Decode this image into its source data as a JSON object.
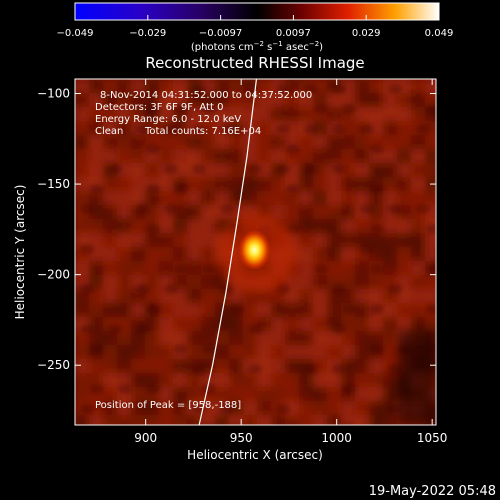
{
  "title": "Reconstructed RHESSI Image",
  "colorbar": {
    "ticks": [
      "−0.049",
      "−0.029",
      "−0.0097",
      "0.0097",
      "0.029",
      "0.049"
    ],
    "unit_prefix": "(photons cm",
    "unit_exp1": "−2",
    "unit_mid1": " s",
    "unit_exp2": "−1",
    "unit_mid2": " asec",
    "unit_exp3": "−2",
    "unit_suffix": ")",
    "colormap": "red-temperature"
  },
  "annotations": {
    "line1": "8-Nov-2014 04:31:52.000 to 04:37:52.000",
    "line2": "Detectors: 3F 6F 9F, Att 0",
    "line3": "Energy Range: 6.0 - 12.0 keV",
    "line4_a": "Clean",
    "line4_b": "Total counts: 7.16E+04",
    "peak": "Position of Peak = [958,-188]"
  },
  "footer_timestamp": "19-May-2022 05:48",
  "chart_data": {
    "type": "heatmap",
    "title": "Reconstructed RHESSI Image",
    "xlabel": "Heliocentric X (arcsec)",
    "ylabel": "Heliocentric Y (arcsec)",
    "xlim": [
      863,
      1052
    ],
    "ylim": [
      -283,
      -92
    ],
    "xticks": [
      {
        "value": 900,
        "label": "900"
      },
      {
        "value": 950,
        "label": "950"
      },
      {
        "value": 1000,
        "label": "1000"
      },
      {
        "value": 1050,
        "label": "1050"
      }
    ],
    "yticks": [
      {
        "value": -100,
        "label": "−100"
      },
      {
        "value": -150,
        "label": "−150"
      },
      {
        "value": -200,
        "label": "−200"
      },
      {
        "value": -250,
        "label": "−250"
      }
    ],
    "peak": {
      "x": 958,
      "y": -188
    },
    "colorbar_range": [
      -0.049,
      0.049
    ],
    "limb_curve": [
      [
        928,
        -283
      ],
      [
        935,
        -250
      ],
      [
        942,
        -210
      ],
      [
        948,
        -170
      ],
      [
        953,
        -135
      ],
      [
        958,
        -92
      ]
    ]
  }
}
